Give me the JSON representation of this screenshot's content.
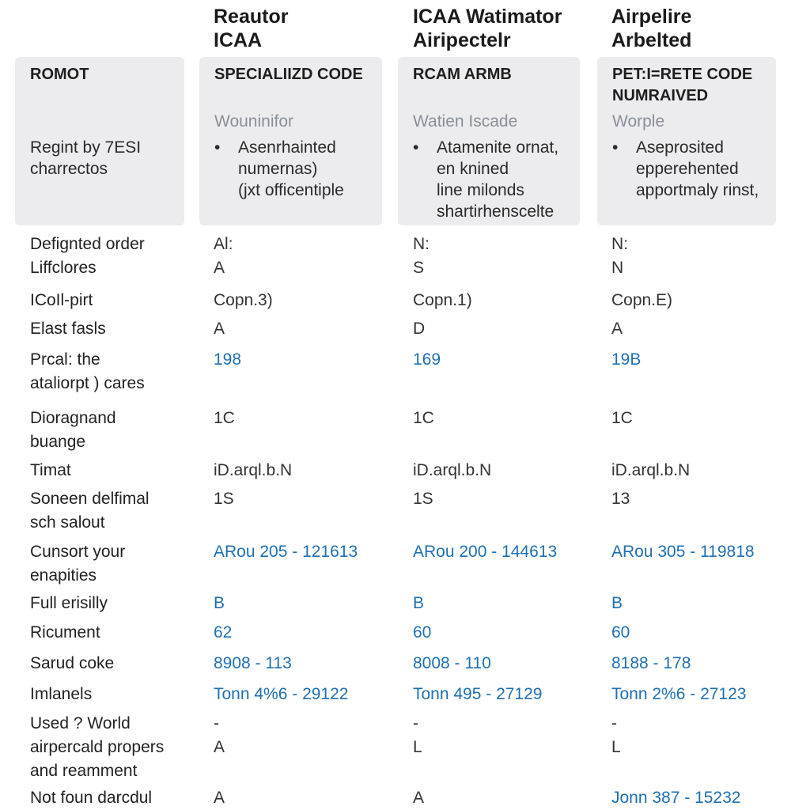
{
  "column_headers": [
    [
      "Reautor",
      "ICAA"
    ],
    [
      "ICAA Watimator",
      "Airipectelr"
    ],
    [
      "Airpelire",
      "Arbelted"
    ]
  ],
  "cards": [
    {
      "title": [
        "ROMOT"
      ],
      "body": [
        "Regint by 7ESI",
        "charrectos"
      ]
    },
    {
      "title": [
        "SPECIALIIZD CODE"
      ],
      "subtitle": "Wouninifor",
      "bullet": [
        "Asenrhainted",
        "numernas)",
        "(jxt officentiple"
      ]
    },
    {
      "title": [
        "RCAM ARMB"
      ],
      "subtitle": "Watien Iscade",
      "bullet": [
        "Atamenite ornat,",
        "en knined",
        "line milonds",
        "shartirhenscelte"
      ]
    },
    {
      "title": [
        "PET:I=RETE CODE",
        "NUMRAIVED"
      ],
      "subtitle": "Worple",
      "bullet": [
        "Aseprosited",
        "epperehented",
        "apportmaly rinst,"
      ]
    }
  ],
  "table": {
    "link_color": "#1f6fb2",
    "rows": [
      {
        "label": [
          "Defignted order",
          "Liffclores"
        ],
        "cells": [
          {
            "lines": [
              "Al:",
              "A"
            ]
          },
          {
            "lines": [
              "N:",
              "S"
            ]
          },
          {
            "lines": [
              "N:",
              "N"
            ]
          }
        ]
      },
      {
        "label": [
          "ICoIl-pirt"
        ],
        "cells": [
          {
            "lines": [
              "Copn.3)"
            ]
          },
          {
            "lines": [
              "Copn.1)"
            ]
          },
          {
            "lines": [
              "Copn.E)"
            ]
          }
        ]
      },
      {
        "label": [
          "Elast fasls"
        ],
        "cells": [
          {
            "lines": [
              "A"
            ]
          },
          {
            "lines": [
              "D"
            ]
          },
          {
            "lines": [
              "A"
            ]
          }
        ]
      },
      {
        "label": [
          "Prcal: the",
          "ataliorpt ) cares"
        ],
        "cells": [
          {
            "lines": [
              "198"
            ],
            "link": true
          },
          {
            "lines": [
              "169"
            ],
            "link": true
          },
          {
            "lines": [
              "19B"
            ],
            "link": true
          }
        ]
      },
      {
        "label": [
          "Dioragnand",
          "buange"
        ],
        "cells": [
          {
            "lines": [
              "1C"
            ]
          },
          {
            "lines": [
              "1C"
            ]
          },
          {
            "lines": [
              "1C"
            ]
          }
        ]
      },
      {
        "label": [
          "Timat"
        ],
        "cells": [
          {
            "lines": [
              "iD.arql.b.N"
            ]
          },
          {
            "lines": [
              "iD.arql.b.N"
            ]
          },
          {
            "lines": [
              "iD.arql.b.N"
            ]
          }
        ]
      },
      {
        "label": [
          "Soneen delfimal",
          "sch salout"
        ],
        "cells": [
          {
            "lines": [
              "1S"
            ]
          },
          {
            "lines": [
              "1S"
            ]
          },
          {
            "lines": [
              "13"
            ]
          }
        ]
      },
      {
        "label": [
          "Cunsort your",
          "enapities"
        ],
        "cells": [
          {
            "lines": [
              "ARou 205 - 121613"
            ],
            "link": true
          },
          {
            "lines": [
              "ARou 200 - 144613"
            ],
            "link": true
          },
          {
            "lines": [
              "ARou 305 - 119818"
            ],
            "link": true
          }
        ]
      },
      {
        "label": [
          "Full erisilly"
        ],
        "cells": [
          {
            "lines": [
              "B"
            ],
            "link": true
          },
          {
            "lines": [
              "B"
            ],
            "link": true
          },
          {
            "lines": [
              "B"
            ],
            "link": true
          }
        ]
      },
      {
        "label": [
          "Ricument"
        ],
        "cells": [
          {
            "lines": [
              "62"
            ],
            "link": true
          },
          {
            "lines": [
              "60"
            ],
            "link": true
          },
          {
            "lines": [
              "60"
            ],
            "link": true
          }
        ]
      },
      {
        "label": [
          "Sarud coke"
        ],
        "cells": [
          {
            "lines": [
              "8908 - 113"
            ],
            "link": true
          },
          {
            "lines": [
              "8008 - 110"
            ],
            "link": true
          },
          {
            "lines": [
              "8188 - 178"
            ],
            "link": true
          }
        ]
      },
      {
        "label": [
          "Imlanels"
        ],
        "cells": [
          {
            "lines": [
              "Tonn 4%6 - 29122"
            ],
            "link": true
          },
          {
            "lines": [
              "Tonn 495 - 27129"
            ],
            "link": true
          },
          {
            "lines": [
              "Tonn 2%6 - 27123"
            ],
            "link": true
          }
        ]
      },
      {
        "label": [
          "Used ? World",
          "airpercald propers",
          "and reamment"
        ],
        "cells": [
          {
            "lines": [
              "-",
              "A"
            ]
          },
          {
            "lines": [
              "-",
              "L"
            ]
          },
          {
            "lines": [
              "-",
              "L"
            ]
          }
        ]
      },
      {
        "label": [
          "Not foun darcdul"
        ],
        "cells": [
          {
            "lines": [
              "A"
            ]
          },
          {
            "lines": [
              "A"
            ]
          },
          {
            "lines": [
              "Jonn 387 - 15232"
            ],
            "link": true
          }
        ]
      }
    ]
  }
}
